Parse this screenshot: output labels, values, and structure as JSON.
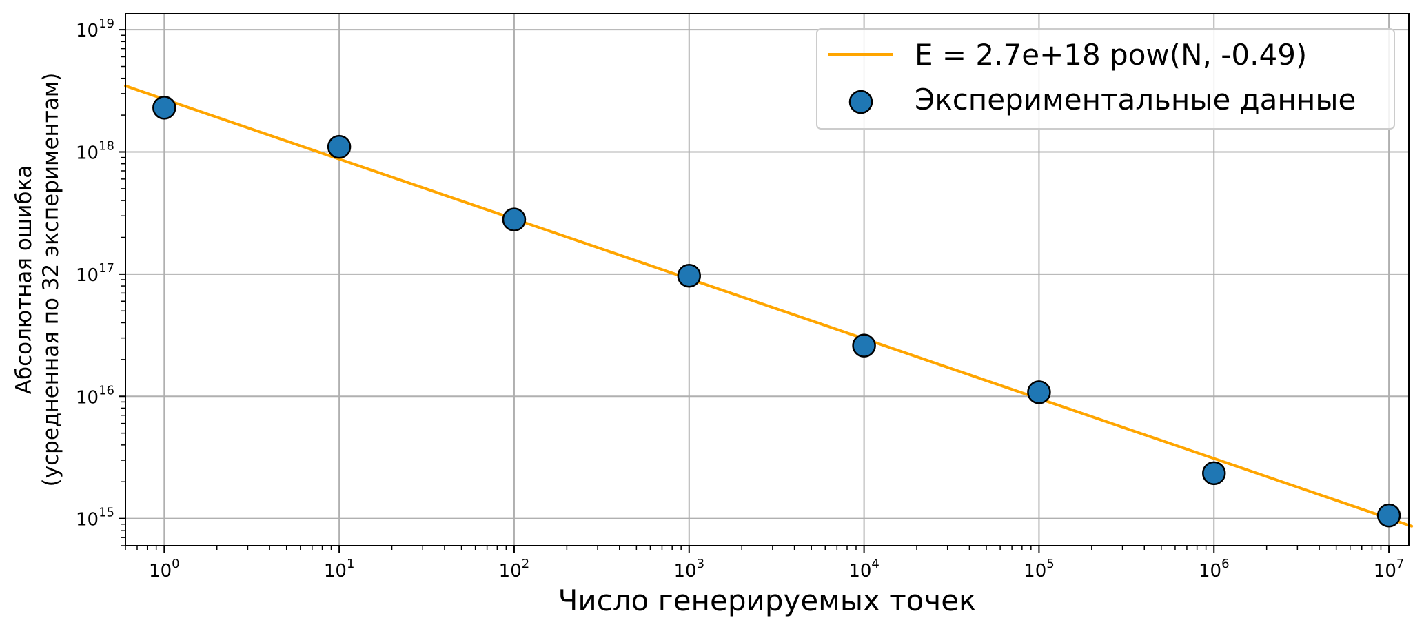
{
  "chart_data": {
    "type": "scatter",
    "xlabel": "Число генерируемых точек",
    "ylabel_lines": [
      "Абсолютная ошибка",
      "(усредненная по 32 экспериментам)"
    ],
    "x_scale": "log",
    "y_scale": "log",
    "xlim": [
      0.6,
      13000000
    ],
    "ylim": [
      600000000000000.0,
      1.35e+19
    ],
    "grid": true,
    "legend_position": "top-right",
    "x_ticks": [
      {
        "value": 1,
        "base": "10",
        "exp": "0"
      },
      {
        "value": 10,
        "base": "10",
        "exp": "1"
      },
      {
        "value": 100,
        "base": "10",
        "exp": "2"
      },
      {
        "value": 1000,
        "base": "10",
        "exp": "3"
      },
      {
        "value": 10000,
        "base": "10",
        "exp": "4"
      },
      {
        "value": 100000,
        "base": "10",
        "exp": "5"
      },
      {
        "value": 1000000,
        "base": "10",
        "exp": "6"
      },
      {
        "value": 10000000,
        "base": "10",
        "exp": "7"
      }
    ],
    "y_ticks": [
      {
        "value": 1000000000000000.0,
        "base": "10",
        "exp": "15"
      },
      {
        "value": 1e+16,
        "base": "10",
        "exp": "16"
      },
      {
        "value": 1e+17,
        "base": "10",
        "exp": "17"
      },
      {
        "value": 1e+18,
        "base": "10",
        "exp": "18"
      },
      {
        "value": 1e+19,
        "base": "10",
        "exp": "19"
      }
    ],
    "series": [
      {
        "name": "Экспериментальные данные",
        "kind": "scatter",
        "color": "#1f77b4",
        "x": [
          1,
          10,
          100,
          1000,
          10000,
          100000,
          1000000,
          10000000
        ],
        "y": [
          2.3e+18,
          1.1e+18,
          2.8e+17,
          9.7e+16,
          2.6e+16,
          1.08e+16,
          2350000000000000.0,
          1060000000000000.0
        ]
      },
      {
        "name": "E = 2.7e+18 pow(N, -0.49)",
        "kind": "line",
        "color": "#ffa500",
        "coef": 2.7e+18,
        "power": -0.49
      }
    ]
  }
}
